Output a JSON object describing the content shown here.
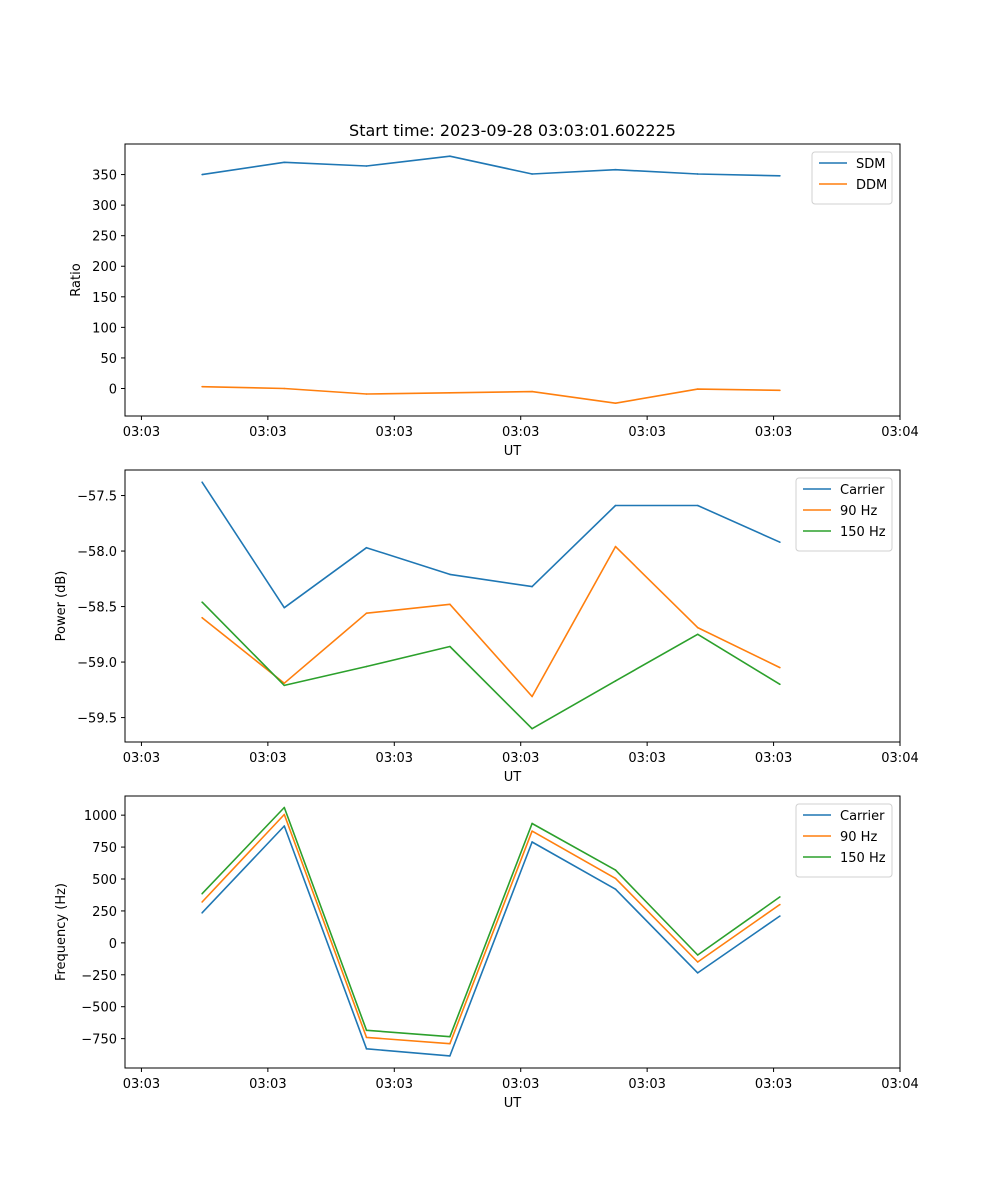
{
  "chart_data": [
    {
      "type": "line",
      "title": "Start time: 2023-09-28 03:03:01.602225",
      "xlabel": "UT",
      "ylabel": "Ratio",
      "x_ticks": [
        0,
        1,
        2,
        3,
        4,
        5,
        6
      ],
      "x_tick_labels": [
        "03:03",
        "03:03",
        "03:03",
        "03:03",
        "03:03",
        "03:03",
        "03:04"
      ],
      "xlim": [
        -0.13,
        6.0
      ],
      "ylim": [
        -45,
        400
      ],
      "y_ticks": [
        0,
        50,
        100,
        150,
        200,
        250,
        300,
        350
      ],
      "y_tick_labels": [
        "0",
        "50",
        "100",
        "150",
        "200",
        "250",
        "300",
        "350"
      ],
      "x": [
        0.48,
        1.13,
        1.78,
        2.44,
        3.09,
        3.75,
        4.4,
        5.05
      ],
      "series": [
        {
          "name": "SDM",
          "color": "#1f77b4",
          "values": [
            350,
            370,
            364,
            380,
            351,
            358,
            351,
            348
          ]
        },
        {
          "name": "DDM",
          "color": "#ff7f0e",
          "values": [
            3,
            0,
            -9,
            -7,
            -5,
            -24,
            -1,
            -3
          ]
        }
      ],
      "legend": "top-right"
    },
    {
      "type": "line",
      "title": "",
      "xlabel": "UT",
      "ylabel": "Power (dB)",
      "x_ticks": [
        0,
        1,
        2,
        3,
        4,
        5,
        6
      ],
      "x_tick_labels": [
        "03:03",
        "03:03",
        "03:03",
        "03:03",
        "03:03",
        "03:03",
        "03:04"
      ],
      "xlim": [
        -0.13,
        6.0
      ],
      "ylim": [
        -59.72,
        -57.27
      ],
      "y_ticks": [
        -57.5,
        -58.0,
        -58.5,
        -59.0,
        -59.5
      ],
      "y_tick_labels": [
        "−57.5",
        "−58.0",
        "−58.5",
        "−59.0",
        "−59.5"
      ],
      "x": [
        0.48,
        1.13,
        1.78,
        2.44,
        3.09,
        3.75,
        4.4,
        5.05
      ],
      "series": [
        {
          "name": "Carrier",
          "color": "#1f77b4",
          "values": [
            -57.38,
            -58.51,
            -57.97,
            -58.21,
            -58.32,
            -57.59,
            -57.59,
            -57.92
          ]
        },
        {
          "name": "90 Hz",
          "color": "#ff7f0e",
          "values": [
            -58.6,
            -59.19,
            -58.56,
            -58.48,
            -59.31,
            -57.96,
            -58.69,
            -59.05
          ]
        },
        {
          "name": "150 Hz",
          "color": "#2ca02c",
          "values": [
            -58.46,
            -59.21,
            -59.04,
            -58.86,
            -59.6,
            -59.17,
            -58.75,
            -59.2
          ]
        }
      ],
      "legend": "top-right"
    },
    {
      "type": "line",
      "title": "",
      "xlabel": "UT",
      "ylabel": "Frequency (Hz)",
      "x_ticks": [
        0,
        1,
        2,
        3,
        4,
        5,
        6
      ],
      "x_tick_labels": [
        "03:03",
        "03:03",
        "03:03",
        "03:03",
        "03:03",
        "03:03",
        "03:04"
      ],
      "xlim": [
        -0.13,
        6.0
      ],
      "ylim": [
        -980,
        1150
      ],
      "y_ticks": [
        1000,
        750,
        500,
        250,
        0,
        -250,
        -500,
        -750
      ],
      "y_tick_labels": [
        "1000",
        "750",
        "500",
        "250",
        "0",
        "−250",
        "−500",
        "−750"
      ],
      "x": [
        0.48,
        1.13,
        1.78,
        2.44,
        3.09,
        3.75,
        4.4,
        5.05
      ],
      "series": [
        {
          "name": "Carrier",
          "color": "#1f77b4",
          "values": [
            235,
            915,
            -830,
            -885,
            790,
            420,
            -235,
            210
          ]
        },
        {
          "name": "90 Hz",
          "color": "#ff7f0e",
          "values": [
            320,
            1005,
            -740,
            -790,
            875,
            505,
            -150,
            300
          ]
        },
        {
          "name": "150 Hz",
          "color": "#2ca02c",
          "values": [
            385,
            1060,
            -685,
            -735,
            935,
            570,
            -95,
            360
          ]
        }
      ],
      "legend": "top-right"
    }
  ]
}
